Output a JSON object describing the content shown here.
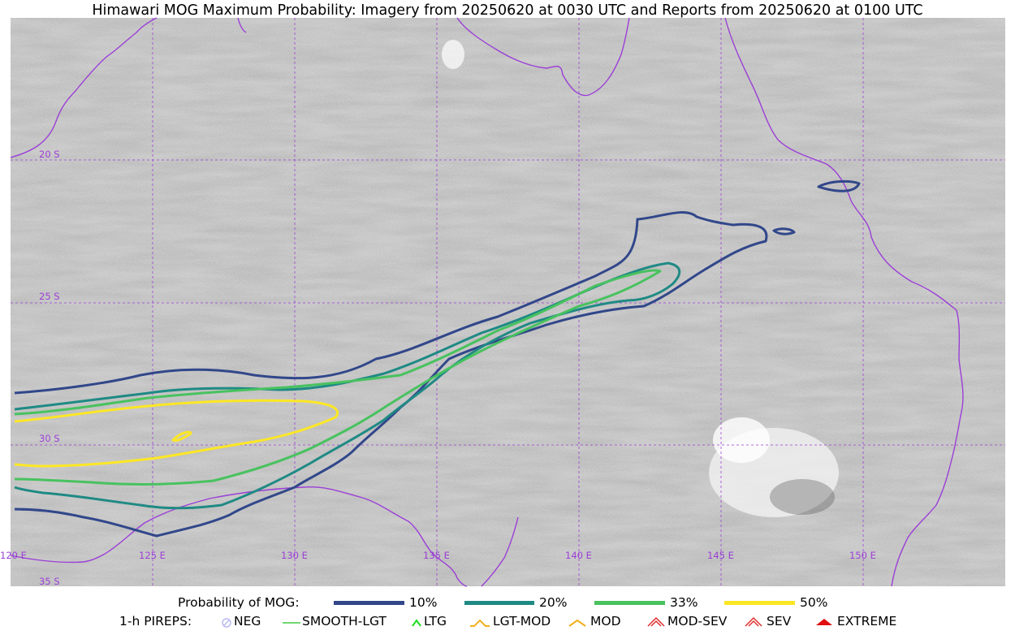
{
  "title": "Himawari MOG Maximum Probability: Imagery from 20250620 at 0030 UTC and Reports from 20250620 at 0100 UTC",
  "map": {
    "lat_labels": [
      "20 S",
      "25 S",
      "30 S",
      "35 S"
    ],
    "lon_labels": [
      "120 E",
      "125 E",
      "130 E",
      "135 E",
      "140 E",
      "145 E",
      "150 E"
    ],
    "gridline_color": "#9b3fd6",
    "coastline_color": "#9b3fd6"
  },
  "legend_probability": {
    "label": "Probability of MOG:",
    "items": [
      {
        "label": "10%",
        "color": "#31478a"
      },
      {
        "label": "20%",
        "color": "#1f8a84"
      },
      {
        "label": "33%",
        "color": "#48c25f"
      },
      {
        "label": "50%",
        "color": "#fde725"
      }
    ]
  },
  "legend_pireps": {
    "label": "1-h PIREPS:",
    "items": [
      {
        "label": "NEG",
        "icon": "neg-icon",
        "color": "#b9b9ef"
      },
      {
        "label": "SMOOTH-LGT",
        "icon": "line-icon",
        "color": "#44cc44"
      },
      {
        "label": "LTG",
        "icon": "chevron-icon",
        "color": "#22dd22"
      },
      {
        "label": "LGT-MOD",
        "icon": "caret-icon",
        "color": "#f0b020"
      },
      {
        "label": "MOD",
        "icon": "chevron-icon",
        "color": "#f0b020"
      },
      {
        "label": "MOD-SEV",
        "icon": "double-caret-icon",
        "color": "#e03030"
      },
      {
        "label": "SEV",
        "icon": "double-caret-icon",
        "color": "#e03030"
      },
      {
        "label": "EXTREME",
        "icon": "filled-caret-icon",
        "color": "#e01010"
      }
    ]
  }
}
